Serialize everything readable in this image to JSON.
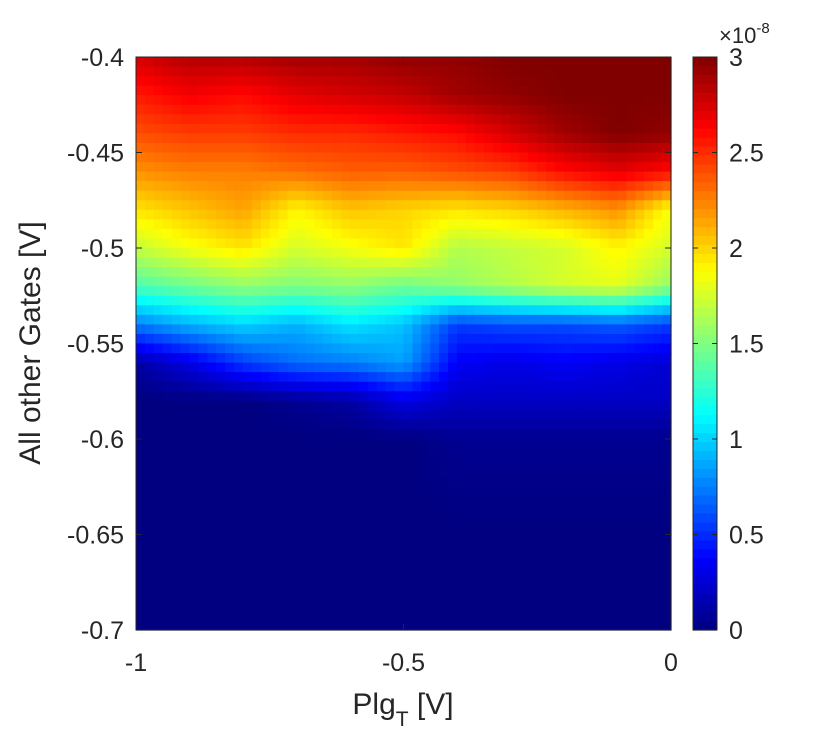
{
  "chart_data": {
    "type": "heatmap",
    "title": "",
    "xlabel": {
      "main": "Plg",
      "subscript": "T",
      "suffix": " [V]"
    },
    "ylabel": "All other Gates [V]",
    "xlim": [
      -1,
      0
    ],
    "ylim": [
      -0.7,
      -0.4
    ],
    "x_ticks": [
      -1,
      -0.5,
      0
    ],
    "x_tick_labels": [
      "-1",
      "-0.5",
      "0"
    ],
    "y_ticks": [
      -0.4,
      -0.45,
      -0.5,
      -0.55,
      -0.6,
      -0.65,
      -0.7
    ],
    "y_tick_labels": [
      "-0.4",
      "-0.45",
      "-0.5",
      "-0.55",
      "-0.6",
      "-0.65",
      "-0.7"
    ],
    "colormap": "jet",
    "colorbar": {
      "clim": [
        0,
        3
      ],
      "ticks": [
        0,
        0.5,
        1,
        1.5,
        2,
        2.5,
        3
      ],
      "tick_labels": [
        "0",
        "0.5",
        "1",
        "1.5",
        "2",
        "2.5",
        "3"
      ],
      "exponent_prefix": "×10",
      "exponent_power": "-8"
    },
    "x_sample": [
      -1.0,
      -0.9,
      -0.8,
      -0.7,
      -0.6,
      -0.5,
      -0.4,
      -0.3,
      -0.2,
      -0.1,
      0.0
    ],
    "y_sample": [
      -0.4,
      -0.42,
      -0.44,
      -0.46,
      -0.48,
      -0.5,
      -0.52,
      -0.54,
      -0.56,
      -0.58,
      -0.6,
      -0.65,
      -0.7
    ],
    "z_sample": [
      [
        2.75,
        2.85,
        2.85,
        2.9,
        2.9,
        2.95,
        2.95,
        3.0,
        3.0,
        3.0,
        3.0
      ],
      [
        2.55,
        2.65,
        2.6,
        2.7,
        2.75,
        2.8,
        2.9,
        2.95,
        3.0,
        3.0,
        3.0
      ],
      [
        2.4,
        2.45,
        2.45,
        2.5,
        2.5,
        2.55,
        2.6,
        2.75,
        2.9,
        3.0,
        2.95
      ],
      [
        2.2,
        2.25,
        2.25,
        2.3,
        2.35,
        2.35,
        2.4,
        2.45,
        2.6,
        2.7,
        2.6
      ],
      [
        1.95,
        2.05,
        2.15,
        1.9,
        2.05,
        2.0,
        1.95,
        2.0,
        2.1,
        2.2,
        1.85
      ],
      [
        1.7,
        1.85,
        1.95,
        1.75,
        1.85,
        1.95,
        1.65,
        1.7,
        1.75,
        1.9,
        1.75
      ],
      [
        1.35,
        1.45,
        1.55,
        1.5,
        1.55,
        1.45,
        1.55,
        1.65,
        1.75,
        1.8,
        1.55
      ],
      [
        0.75,
        0.9,
        1.0,
        0.9,
        1.05,
        0.95,
        0.55,
        0.6,
        0.6,
        0.65,
        0.55
      ],
      [
        0.1,
        0.3,
        0.55,
        0.7,
        0.75,
        0.85,
        0.35,
        0.3,
        0.35,
        0.3,
        0.25
      ],
      [
        0.0,
        0.0,
        0.0,
        0.05,
        0.1,
        0.3,
        0.2,
        0.2,
        0.2,
        0.2,
        0.2
      ],
      [
        0.0,
        0.0,
        0.0,
        0.0,
        0.0,
        0.0,
        0.05,
        0.05,
        0.05,
        0.05,
        0.05
      ],
      [
        0.0,
        0.0,
        0.0,
        0.0,
        0.0,
        0.0,
        0.0,
        0.0,
        0.0,
        0.0,
        0.0
      ],
      [
        0.0,
        0.0,
        0.0,
        0.0,
        0.0,
        0.0,
        0.0,
        0.0,
        0.0,
        0.0,
        0.0
      ]
    ]
  }
}
